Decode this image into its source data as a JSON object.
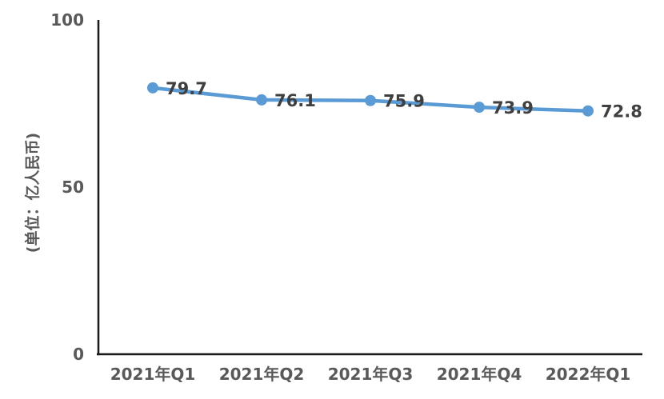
{
  "chart_data": {
    "type": "line",
    "categories": [
      "2021年Q1",
      "2021年Q2",
      "2021年Q3",
      "2021年Q4",
      "2022年Q1"
    ],
    "values": [
      79.7,
      76.1,
      75.9,
      73.9,
      72.8
    ],
    "data_labels": [
      "79.7",
      "76.1",
      "75.9",
      "73.9",
      "72.8"
    ],
    "title": "",
    "xlabel": "",
    "ylabel": "(单位：亿人民币)",
    "ylim": [
      0,
      100
    ],
    "yticks": [
      0,
      50,
      100
    ],
    "grid": false,
    "legend": "none",
    "colors": {
      "line": "#5B9BD5",
      "marker": "#5B9BD5",
      "axis": "#1a1a1a",
      "tick_label": "#595959",
      "data_label": "#3f3f3f"
    }
  }
}
